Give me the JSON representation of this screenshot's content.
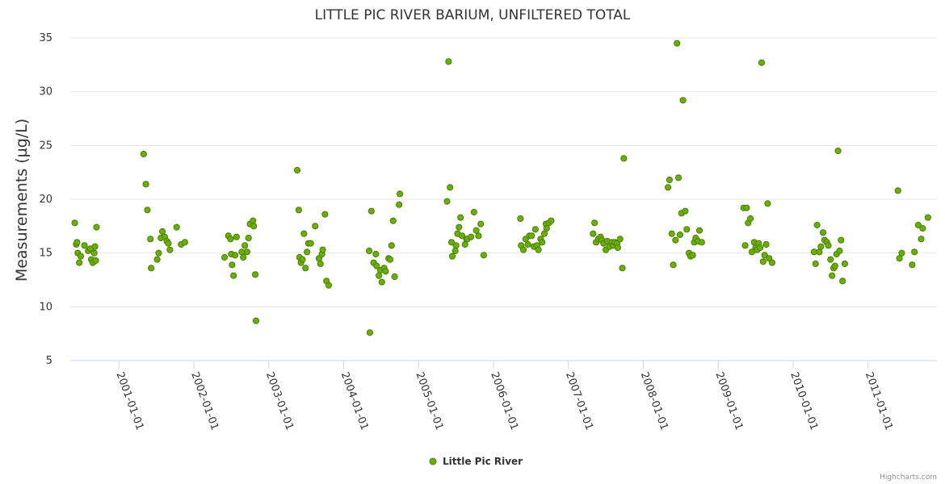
{
  "chart_data": {
    "type": "scatter",
    "title": "LITTLE PIC RIVER BARIUM, UNFILTERED TOTAL",
    "xlabel": "",
    "ylabel": "Measurements (µg/L)",
    "ylim": [
      5,
      35
    ],
    "yticks": [
      5,
      10,
      15,
      20,
      25,
      30,
      35
    ],
    "xlim": [
      2000.35,
      2011.92
    ],
    "xticks": [
      {
        "value": 2001,
        "label": "2001-01-01"
      },
      {
        "value": 2002,
        "label": "2002-01-01"
      },
      {
        "value": 2003,
        "label": "2003-01-01"
      },
      {
        "value": 2004,
        "label": "2004-01-01"
      },
      {
        "value": 2005,
        "label": "2005-01-01"
      },
      {
        "value": 2006,
        "label": "2006-01-01"
      },
      {
        "value": 2007,
        "label": "2007-01-01"
      },
      {
        "value": 2008,
        "label": "2008-01-01"
      },
      {
        "value": 2009,
        "label": "2009-01-01"
      },
      {
        "value": 2010,
        "label": "2010-01-01"
      },
      {
        "value": 2011,
        "label": "2011-01-01"
      }
    ],
    "grid": "horizontal",
    "legend_position": "bottom-center",
    "series": [
      {
        "name": "Little Pic River",
        "color": "#6aaf08",
        "stroke": "#4c7f05",
        "points": [
          [
            2000.41,
            17.8
          ],
          [
            2000.43,
            15.8
          ],
          [
            2000.44,
            16.0
          ],
          [
            2000.45,
            15.0
          ],
          [
            2000.47,
            14.1
          ],
          [
            2000.49,
            14.7
          ],
          [
            2000.54,
            15.7
          ],
          [
            2000.59,
            15.2
          ],
          [
            2000.62,
            15.4
          ],
          [
            2000.63,
            14.4
          ],
          [
            2000.65,
            14.1
          ],
          [
            2000.67,
            15.0
          ],
          [
            2000.68,
            15.6
          ],
          [
            2000.69,
            14.3
          ],
          [
            2000.7,
            17.4
          ],
          [
            2001.33,
            24.2
          ],
          [
            2001.36,
            21.4
          ],
          [
            2001.38,
            19.0
          ],
          [
            2001.42,
            16.3
          ],
          [
            2001.43,
            13.6
          ],
          [
            2001.51,
            14.4
          ],
          [
            2001.53,
            15.0
          ],
          [
            2001.56,
            16.4
          ],
          [
            2001.58,
            17.0
          ],
          [
            2001.61,
            16.5
          ],
          [
            2001.64,
            16.1
          ],
          [
            2001.66,
            15.9
          ],
          [
            2001.68,
            15.3
          ],
          [
            2001.77,
            17.4
          ],
          [
            2001.83,
            15.8
          ],
          [
            2001.88,
            16.0
          ],
          [
            2002.41,
            14.6
          ],
          [
            2002.46,
            16.6
          ],
          [
            2002.49,
            16.3
          ],
          [
            2002.5,
            14.9
          ],
          [
            2002.51,
            13.9
          ],
          [
            2002.53,
            12.9
          ],
          [
            2002.55,
            14.8
          ],
          [
            2002.57,
            16.5
          ],
          [
            2002.64,
            15.1
          ],
          [
            2002.66,
            14.6
          ],
          [
            2002.68,
            15.7
          ],
          [
            2002.71,
            15.1
          ],
          [
            2002.73,
            16.4
          ],
          [
            2002.75,
            17.7
          ],
          [
            2002.79,
            18.0
          ],
          [
            2002.8,
            17.5
          ],
          [
            2002.82,
            13.0
          ],
          [
            2002.83,
            8.7
          ],
          [
            2003.38,
            22.7
          ],
          [
            2003.4,
            19.0
          ],
          [
            2003.41,
            14.6
          ],
          [
            2003.43,
            14.1
          ],
          [
            2003.45,
            14.4
          ],
          [
            2003.47,
            16.8
          ],
          [
            2003.49,
            13.6
          ],
          [
            2003.51,
            15.1
          ],
          [
            2003.53,
            15.9
          ],
          [
            2003.56,
            15.9
          ],
          [
            2003.62,
            17.5
          ],
          [
            2003.67,
            14.5
          ],
          [
            2003.69,
            14.0
          ],
          [
            2003.71,
            14.9
          ],
          [
            2003.72,
            15.3
          ],
          [
            2003.75,
            18.6
          ],
          [
            2003.77,
            12.4
          ],
          [
            2003.8,
            12.0
          ],
          [
            2004.34,
            15.2
          ],
          [
            2004.35,
            7.6
          ],
          [
            2004.37,
            18.9
          ],
          [
            2004.4,
            14.1
          ],
          [
            2004.43,
            14.9
          ],
          [
            2004.44,
            13.8
          ],
          [
            2004.47,
            12.9
          ],
          [
            2004.49,
            13.4
          ],
          [
            2004.51,
            12.3
          ],
          [
            2004.54,
            13.6
          ],
          [
            2004.56,
            13.3
          ],
          [
            2004.6,
            14.5
          ],
          [
            2004.62,
            14.4
          ],
          [
            2004.64,
            15.7
          ],
          [
            2004.66,
            18.0
          ],
          [
            2004.68,
            12.8
          ],
          [
            2004.74,
            19.5
          ],
          [
            2004.75,
            20.5
          ],
          [
            2005.38,
            19.8
          ],
          [
            2005.4,
            32.8
          ],
          [
            2005.42,
            21.1
          ],
          [
            2005.44,
            16.0
          ],
          [
            2005.45,
            14.7
          ],
          [
            2005.49,
            15.2
          ],
          [
            2005.5,
            15.7
          ],
          [
            2005.52,
            16.8
          ],
          [
            2005.54,
            17.4
          ],
          [
            2005.56,
            18.3
          ],
          [
            2005.58,
            16.6
          ],
          [
            2005.62,
            15.8
          ],
          [
            2005.64,
            16.3
          ],
          [
            2005.65,
            16.3
          ],
          [
            2005.7,
            16.5
          ],
          [
            2005.74,
            18.8
          ],
          [
            2005.77,
            17.1
          ],
          [
            2005.8,
            16.6
          ],
          [
            2005.83,
            17.7
          ],
          [
            2005.87,
            14.8
          ],
          [
            2006.36,
            18.2
          ],
          [
            2006.37,
            15.7
          ],
          [
            2006.4,
            15.3
          ],
          [
            2006.43,
            16.3
          ],
          [
            2006.46,
            15.8
          ],
          [
            2006.48,
            16.6
          ],
          [
            2006.51,
            16.6
          ],
          [
            2006.54,
            15.6
          ],
          [
            2006.56,
            17.2
          ],
          [
            2006.58,
            15.7
          ],
          [
            2006.6,
            15.3
          ],
          [
            2006.63,
            16.3
          ],
          [
            2006.65,
            16.0
          ],
          [
            2006.68,
            16.8
          ],
          [
            2006.7,
            17.7
          ],
          [
            2006.71,
            17.3
          ],
          [
            2006.74,
            17.8
          ],
          [
            2006.77,
            18.0
          ],
          [
            2007.33,
            16.8
          ],
          [
            2007.35,
            17.8
          ],
          [
            2007.37,
            16.0
          ],
          [
            2007.4,
            16.3
          ],
          [
            2007.43,
            16.5
          ],
          [
            2007.45,
            16.2
          ],
          [
            2007.47,
            15.9
          ],
          [
            2007.5,
            15.3
          ],
          [
            2007.52,
            16.1
          ],
          [
            2007.55,
            15.6
          ],
          [
            2007.58,
            16.0
          ],
          [
            2007.6,
            15.7
          ],
          [
            2007.62,
            16.0
          ],
          [
            2007.65,
            15.9
          ],
          [
            2007.66,
            15.5
          ],
          [
            2007.69,
            16.3
          ],
          [
            2007.72,
            13.6
          ],
          [
            2007.74,
            23.8
          ],
          [
            2008.33,
            21.1
          ],
          [
            2008.35,
            21.8
          ],
          [
            2008.38,
            16.8
          ],
          [
            2008.4,
            13.9
          ],
          [
            2008.43,
            16.2
          ],
          [
            2008.45,
            34.5
          ],
          [
            2008.47,
            22.0
          ],
          [
            2008.49,
            16.7
          ],
          [
            2008.51,
            18.7
          ],
          [
            2008.53,
            29.2
          ],
          [
            2008.56,
            18.9
          ],
          [
            2008.58,
            17.2
          ],
          [
            2008.61,
            15.0
          ],
          [
            2008.63,
            14.7
          ],
          [
            2008.66,
            14.8
          ],
          [
            2008.68,
            16.0
          ],
          [
            2008.7,
            16.4
          ],
          [
            2008.73,
            16.1
          ],
          [
            2008.75,
            17.1
          ],
          [
            2008.78,
            16.0
          ],
          [
            2009.34,
            19.2
          ],
          [
            2009.36,
            15.7
          ],
          [
            2009.38,
            19.2
          ],
          [
            2009.4,
            17.8
          ],
          [
            2009.43,
            18.2
          ],
          [
            2009.45,
            15.1
          ],
          [
            2009.48,
            16.0
          ],
          [
            2009.5,
            15.5
          ],
          [
            2009.52,
            15.3
          ],
          [
            2009.54,
            15.9
          ],
          [
            2009.56,
            15.5
          ],
          [
            2009.58,
            32.7
          ],
          [
            2009.6,
            14.2
          ],
          [
            2009.62,
            14.8
          ],
          [
            2009.64,
            15.8
          ],
          [
            2009.66,
            19.6
          ],
          [
            2009.68,
            14.5
          ],
          [
            2009.72,
            14.1
          ],
          [
            2010.28,
            15.1
          ],
          [
            2010.3,
            14.0
          ],
          [
            2010.32,
            17.6
          ],
          [
            2010.35,
            15.1
          ],
          [
            2010.37,
            15.6
          ],
          [
            2010.4,
            16.9
          ],
          [
            2010.42,
            16.2
          ],
          [
            2010.45,
            16.0
          ],
          [
            2010.47,
            15.7
          ],
          [
            2010.5,
            14.4
          ],
          [
            2010.52,
            12.9
          ],
          [
            2010.54,
            13.6
          ],
          [
            2010.56,
            13.8
          ],
          [
            2010.58,
            14.9
          ],
          [
            2010.6,
            24.5
          ],
          [
            2010.62,
            15.2
          ],
          [
            2010.64,
            16.2
          ],
          [
            2010.66,
            12.4
          ],
          [
            2010.69,
            14.0
          ],
          [
            2011.4,
            20.8
          ],
          [
            2011.42,
            14.5
          ],
          [
            2011.45,
            15.0
          ],
          [
            2011.59,
            13.9
          ],
          [
            2011.62,
            15.1
          ],
          [
            2011.67,
            17.6
          ],
          [
            2011.71,
            16.3
          ],
          [
            2011.73,
            17.3
          ],
          [
            2011.8,
            18.3
          ]
        ]
      }
    ]
  },
  "legend": {
    "label": "Little Pic River"
  },
  "credits": {
    "text": "Highcharts.com"
  }
}
